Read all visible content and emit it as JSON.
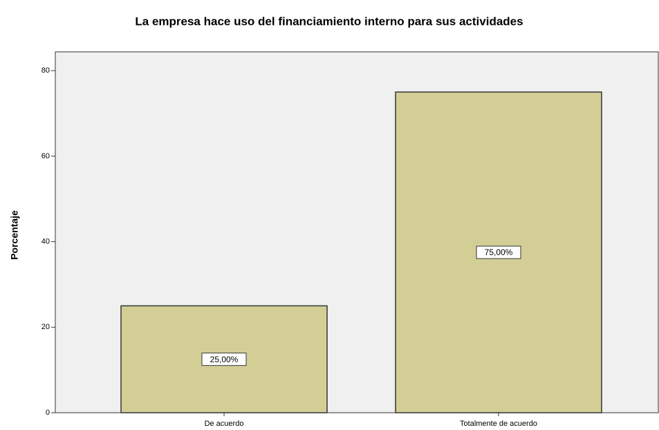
{
  "chart_data": {
    "type": "bar",
    "title": "La empresa hace uso del financiamiento interno para sus actividades",
    "y_label": "Porcentaje",
    "categories": [
      "De acuerdo",
      "Totalmente de acuerdo"
    ],
    "values": [
      25,
      75
    ],
    "value_labels": [
      "25,00%",
      "75,00%"
    ],
    "color": "#d3ce96",
    "ylim": [
      0,
      84.4
    ],
    "yticks": [
      0,
      20,
      40,
      60,
      80
    ],
    "grid": false
  }
}
